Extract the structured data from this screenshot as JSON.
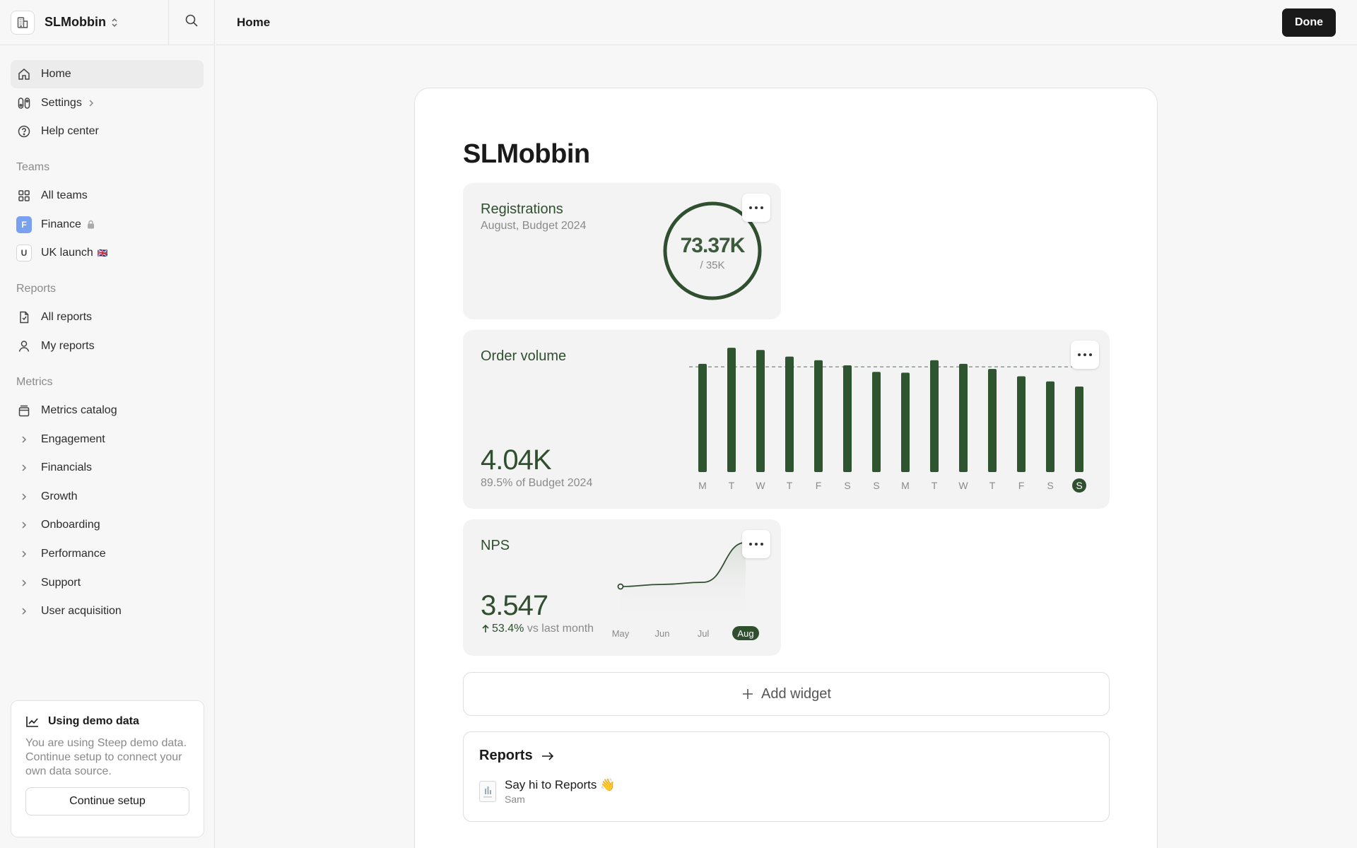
{
  "workspace": {
    "name": "SLMobbin"
  },
  "topbar": {
    "title": "Home",
    "done_label": "Done"
  },
  "nav": {
    "primary": [
      {
        "label": "Home",
        "icon": "home-icon",
        "active": true
      },
      {
        "label": "Settings",
        "icon": "settings-icon"
      },
      {
        "label": "Help center",
        "icon": "help-icon"
      }
    ],
    "teams_title": "Teams",
    "teams": [
      {
        "label": "All teams",
        "icon": "grid-icon"
      },
      {
        "label": "Finance",
        "badge": "F"
      },
      {
        "label": "UK launch",
        "badge": "U",
        "flag": "🇬🇧"
      }
    ],
    "reports_title": "Reports",
    "reports": [
      {
        "label": "All reports",
        "icon": "report-icon"
      },
      {
        "label": "My reports",
        "icon": "user-icon"
      }
    ],
    "metrics_title": "Metrics",
    "metrics_catalog": "Metrics catalog",
    "metric_groups": [
      "Engagement",
      "Financials",
      "Growth",
      "Onboarding",
      "Performance",
      "Support",
      "User acquisition"
    ]
  },
  "demo": {
    "title": "Using demo data",
    "text": "You are using Steep demo data. Continue setup to connect your own data source.",
    "button": "Continue setup"
  },
  "page": {
    "heading": "SLMobbin"
  },
  "registrations": {
    "title": "Registrations",
    "subtitle": "August, Budget 2024",
    "value": "73.37K",
    "target": "/ 35K",
    "progress": 1.0
  },
  "order_volume": {
    "title": "Order volume",
    "value": "4.04K",
    "note": "89.5% of Budget 2024"
  },
  "nps": {
    "title": "NPS",
    "value": "3.547",
    "change": "53.4%",
    "change_suffix": " vs last month"
  },
  "add_widget": {
    "label": "Add widget"
  },
  "reports_card": {
    "title": "Reports",
    "items": [
      {
        "title": "Say hi to Reports 👋",
        "author": "Sam"
      }
    ]
  },
  "colors": {
    "accent": "#2f4f2f",
    "bar": "#2f5530",
    "dark": "#1a1a1a"
  },
  "chart_data": [
    {
      "type": "bar",
      "categories": [
        "M",
        "T",
        "W",
        "T",
        "F",
        "S",
        "S",
        "M",
        "T",
        "W",
        "T",
        "F",
        "S",
        "S"
      ],
      "values": [
        148,
        170,
        167,
        158,
        153,
        146,
        137,
        136,
        153,
        148,
        141,
        131,
        124,
        117
      ],
      "budget_line": 144,
      "ylim": [
        0,
        175
      ],
      "highlight_index": 13
    },
    {
      "type": "area",
      "categories": [
        "May",
        "Jun",
        "Jul",
        "Aug"
      ],
      "values": [
        2.3,
        2.36,
        2.42,
        3.547
      ],
      "ylim": [
        1.8,
        3.6
      ],
      "highlight_index": 3
    }
  ]
}
